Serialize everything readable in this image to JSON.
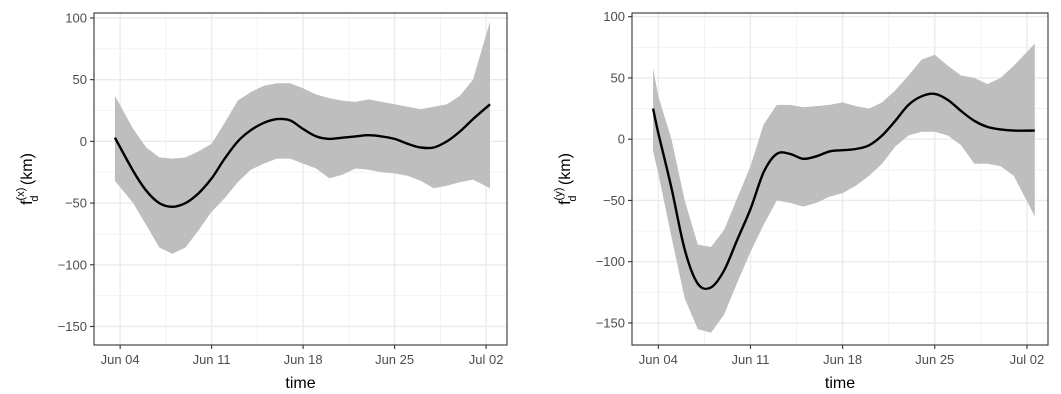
{
  "chart_data": [
    {
      "type": "line",
      "title": "",
      "xlabel": "time",
      "ylabel": {
        "base": "f",
        "sub": "d",
        "sup": "(x)",
        "unit": "(km)"
      },
      "x_ticks": [
        "Jun 04",
        "Jun 11",
        "Jun 18",
        "Jun 25",
        "Jul 02"
      ],
      "x_tick_dates": [
        "2021-06-04",
        "2021-06-11",
        "2021-06-18",
        "2021-06-25",
        "2021-07-02"
      ],
      "y_ticks": [
        100,
        50,
        0,
        -50,
        -100,
        -150
      ],
      "xlim": [
        "2021-06-02",
        "2021-07-03.6"
      ],
      "ylim": [
        -165,
        104
      ],
      "grid": true,
      "series": [
        {
          "x": [
            "2021-06-03.6",
            "2021-06-05",
            "2021-06-06",
            "2021-06-07",
            "2021-06-08",
            "2021-06-09",
            "2021-06-10",
            "2021-06-11",
            "2021-06-12",
            "2021-06-13",
            "2021-06-14",
            "2021-06-15",
            "2021-06-16",
            "2021-06-17",
            "2021-06-18",
            "2021-06-19",
            "2021-06-20",
            "2021-06-21",
            "2021-06-22",
            "2021-06-23",
            "2021-06-24",
            "2021-06-25",
            "2021-06-26",
            "2021-06-27",
            "2021-06-28",
            "2021-06-29",
            "2021-06-30",
            "2021-07-01",
            "2021-07-02.3"
          ],
          "y": [
            3,
            -24,
            -40,
            -50,
            -53,
            -50,
            -42,
            -30,
            -14,
            0,
            9,
            15,
            18,
            17,
            10,
            4,
            2,
            3,
            4,
            5,
            4,
            2,
            -2,
            -5,
            -5,
            0,
            8,
            18,
            30
          ],
          "lower": [
            -32,
            -50,
            -68,
            -86,
            -91,
            -86,
            -72,
            -57,
            -46,
            -33,
            -23,
            -18,
            -14,
            -14,
            -18,
            -22,
            -30,
            -27,
            -22,
            -23,
            -25,
            -26,
            -28,
            -32,
            -38,
            -36,
            -33,
            -31,
            -38
          ],
          "upper": [
            37,
            10,
            -5,
            -13,
            -14,
            -13,
            -8,
            -2,
            15,
            33,
            40,
            45,
            47,
            47,
            43,
            38,
            35,
            33,
            32,
            34,
            32,
            30,
            28,
            26,
            28,
            30,
            37,
            50,
            97
          ]
        }
      ]
    },
    {
      "type": "line",
      "title": "",
      "xlabel": "time",
      "ylabel": {
        "base": "f",
        "sub": "d",
        "sup": "(y)",
        "unit": "(km)"
      },
      "x_ticks": [
        "Jun 04",
        "Jun 11",
        "Jun 18",
        "Jun 25",
        "Jul 02"
      ],
      "x_tick_dates": [
        "2021-06-04",
        "2021-06-11",
        "2021-06-18",
        "2021-06-25",
        "2021-07-02"
      ],
      "y_ticks": [
        100,
        50,
        0,
        -50,
        -100,
        -150
      ],
      "xlim": [
        "2021-06-02",
        "2021-07-03.6"
      ],
      "ylim": [
        -168,
        103
      ],
      "grid": true,
      "series": [
        {
          "x": [
            "2021-06-03.6",
            "2021-06-04",
            "2021-06-05",
            "2021-06-06",
            "2021-06-07",
            "2021-06-08",
            "2021-06-09",
            "2021-06-10",
            "2021-06-11",
            "2021-06-12",
            "2021-06-13",
            "2021-06-14",
            "2021-06-15",
            "2021-06-16",
            "2021-06-17",
            "2021-06-18",
            "2021-06-19",
            "2021-06-20",
            "2021-06-21",
            "2021-06-22",
            "2021-06-23",
            "2021-06-24",
            "2021-06-25",
            "2021-06-26",
            "2021-06-27",
            "2021-06-28",
            "2021-06-29",
            "2021-06-30",
            "2021-07-01",
            "2021-07-02.6"
          ],
          "y": [
            25,
            5,
            -40,
            -90,
            -118,
            -121,
            -107,
            -82,
            -57,
            -27,
            -12,
            -12,
            -16,
            -14,
            -10,
            -9,
            -8,
            -5,
            3,
            15,
            28,
            35,
            37,
            32,
            23,
            15,
            10,
            8,
            7,
            7
          ],
          "lower": [
            -10,
            -28,
            -80,
            -130,
            -155,
            -158,
            -143,
            -117,
            -92,
            -70,
            -50,
            -52,
            -55,
            -52,
            -47,
            -44,
            -38,
            -30,
            -20,
            -6,
            3,
            6,
            6,
            3,
            -5,
            -20,
            -20,
            -22,
            -30,
            -63
          ],
          "upper": [
            58,
            35,
            0,
            -50,
            -86,
            -88,
            -74,
            -48,
            -22,
            12,
            28,
            28,
            26,
            27,
            28,
            30,
            27,
            25,
            30,
            40,
            52,
            65,
            69,
            60,
            52,
            50,
            45,
            50,
            60,
            78
          ]
        }
      ]
    }
  ]
}
